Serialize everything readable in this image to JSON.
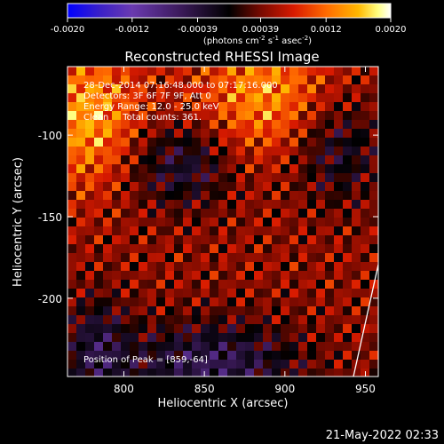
{
  "chart_data": {
    "type": "heatmap",
    "title": "Reconstructed RHESSI Image",
    "xlabel": "Heliocentric X (arcsec)",
    "ylabel": "Heliocentric Y (arcsec)",
    "xlim": [
      765,
      958
    ],
    "ylim": [
      -248,
      -58
    ],
    "xticks": [
      "800",
      "850",
      "900",
      "950"
    ],
    "yticks": [
      "-100",
      "-150",
      "-200"
    ],
    "xtick_values": [
      800,
      850,
      900,
      950
    ],
    "ytick_values": [
      -100,
      -150,
      -200
    ],
    "colorbar": {
      "ticks": [
        "-0.0020",
        "-0.0012",
        "-0.00039",
        "0.00039",
        "0.0012",
        "0.0020"
      ],
      "range": [
        -0.002,
        0.002
      ],
      "unit_prefix": "(photons cm",
      "unit_exp1": "-2",
      "unit_mid1": " s",
      "unit_exp2": "-1",
      "unit_mid2": " asec",
      "unit_exp3": "-2",
      "unit_suffix": ")",
      "colormap": [
        "#0000ff",
        "#3a20c8",
        "#6a3ab0",
        "#3b1a5a",
        "#000000",
        "#7a0a00",
        "#d81a00",
        "#ff6a00",
        "#ffb800",
        "#ffff80",
        "#ffffff"
      ]
    },
    "annotations": [
      "28-Dec-2014 07:16:48.000 to 07:17:16.000",
      "Detectors: 3F 6F 7F 9F, Att 0",
      "Energy Range: 12.0 - 25.0 keV",
      "Clean     Total counts: 361."
    ],
    "peak_label": "Position of Peak = [859,-64]",
    "peak": [
      859,
      -64
    ],
    "timestamp": "21-May-2022 02:33",
    "grid": false
  }
}
